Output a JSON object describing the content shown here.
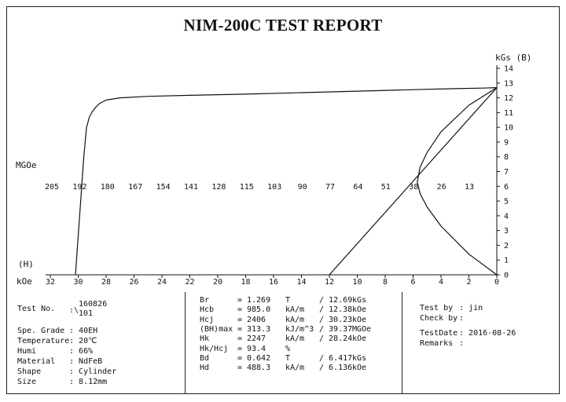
{
  "title": "NIM-200C TEST REPORT",
  "chart_data": {
    "type": "line",
    "title": "NIM-200C TEST REPORT",
    "x_axis": {
      "label": "kOe",
      "ticks": [
        32,
        30,
        28,
        26,
        24,
        22,
        20,
        18,
        16,
        14,
        12,
        10,
        8,
        6,
        4,
        2,
        0
      ],
      "range": [
        32,
        0
      ]
    },
    "y_axis_right": {
      "label": "kGs (B)",
      "ticks": [
        14,
        13,
        12,
        11,
        10,
        9,
        8,
        7,
        6,
        5,
        4,
        3,
        2,
        1,
        0
      ],
      "range": [
        0,
        14
      ]
    },
    "left_labels": {
      "mgoe": "MGOe",
      "h": "(H)"
    },
    "energy_scale": {
      "label": "MGOe",
      "ticks": [
        "205",
        "192",
        "180",
        "167",
        "154",
        "141",
        "128",
        "115",
        "103",
        "90",
        "77",
        "64",
        "51",
        "38",
        "26",
        "13"
      ]
    },
    "series": [
      {
        "curve": "demagnetization",
        "x": [
          30.2,
          29.9,
          29.6,
          29.4,
          29.2,
          29.0,
          28.8,
          28.5,
          28.0,
          27.0,
          25.0,
          22.0,
          18.0,
          14.0,
          10.0,
          6.0,
          3.0,
          1.0,
          0.0
        ],
        "y": [
          0.0,
          4.0,
          8.0,
          10.0,
          10.7,
          11.05,
          11.3,
          11.6,
          11.85,
          12.0,
          12.1,
          12.17,
          12.25,
          12.35,
          12.45,
          12.55,
          12.62,
          12.66,
          12.69
        ]
      },
      {
        "curve": "load line",
        "x": [
          12.0,
          0.0
        ],
        "y": [
          0.0,
          12.69
        ]
      },
      {
        "curve": "energy product",
        "x": [
          0.0,
          2.0,
          4.0,
          5.0,
          5.5,
          5.7,
          5.5,
          5.0,
          4.0,
          2.0,
          0.0
        ],
        "y": [
          0.0,
          1.4,
          3.3,
          4.6,
          5.5,
          6.3,
          7.3,
          8.3,
          9.7,
          11.5,
          12.69
        ]
      }
    ],
    "grid": false
  },
  "sample": {
    "test_no_label": "Test No.",
    "test_no_sep": ":\\",
    "test_no_line1": "160826",
    "test_no_line2": "101",
    "grade_label": "Spe. Grade",
    "grade": "40EH",
    "temperature_label": "Temperature",
    "temperature": "20℃",
    "humi_label": "Humi",
    "humi": "66%",
    "material_label": "Material",
    "material": "NdFeB",
    "shape_label": "Shape",
    "shape": "Cylinder",
    "size_label": "Size",
    "size": "8.12mm"
  },
  "results": [
    {
      "name": "Br",
      "value": "1.269",
      "unit": "T",
      "alt": "12.69",
      "alt_unit": "kGs"
    },
    {
      "name": "Hcb",
      "value": "985.0",
      "unit": "kA/m",
      "alt": "12.38",
      "alt_unit": "kOe"
    },
    {
      "name": "Hcj",
      "value": "2406",
      "unit": "kA/m",
      "alt": "30.23",
      "alt_unit": "kOe"
    },
    {
      "name": "(BH)max",
      "value": "313.3",
      "unit": "kJ/m^3",
      "alt": "39.37",
      "alt_unit": "MGOe"
    },
    {
      "name": "Hk",
      "value": "2247",
      "unit": "kA/m",
      "alt": "28.24",
      "alt_unit": "kOe"
    },
    {
      "name": "Hk/Hcj",
      "value": "93.4",
      "unit": "%",
      "alt": "",
      "alt_unit": ""
    },
    {
      "name": "Bd",
      "value": "0.642",
      "unit": "T",
      "alt": "6.417",
      "alt_unit": "kGs"
    },
    {
      "name": "Hd",
      "value": "488.3",
      "unit": "kA/m",
      "alt": "6.136",
      "alt_unit": "kOe"
    }
  ],
  "signoff": {
    "test_by_label": "Test by",
    "test_by": "jin",
    "check_by_label": "Check by",
    "check_by": "",
    "test_date_label": "TestDate",
    "test_date": "2016-08-26",
    "remarks_label": "Remarks",
    "remarks": ""
  }
}
